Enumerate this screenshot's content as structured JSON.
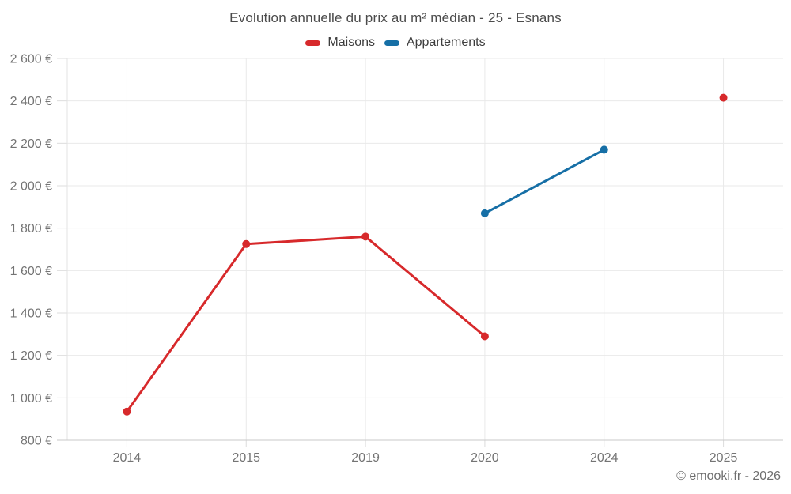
{
  "title": "Evolution annuelle du prix au m² médian - 25 - Esnans",
  "footer": "© emooki.fr - 2026",
  "colors": {
    "maisons": "#d7292b",
    "appartements": "#166fa6",
    "gridline": "#e9e9e9",
    "axis_line": "#c9c9c9",
    "left_axis_line": "#e3e3e3",
    "tick": "#dcdcdc",
    "axis_label": "#747474",
    "title_text": "#4b4b4b"
  },
  "chart_data": {
    "type": "line",
    "title": "Evolution annuelle du prix au m² médian - 25 - Esnans",
    "categories": [
      "2014",
      "2015",
      "2019",
      "2020",
      "2024",
      "2025"
    ],
    "series": [
      {
        "name": "Maisons",
        "color": "#d7292b",
        "values": [
          935,
          1725,
          1760,
          1290,
          null,
          2415
        ]
      },
      {
        "name": "Appartements",
        "color": "#166fa6",
        "values": [
          null,
          null,
          null,
          1870,
          2170,
          null
        ]
      }
    ],
    "xlabel": "",
    "ylabel": "",
    "ylim": [
      800,
      2600
    ],
    "ytick_step": 200,
    "ytick_labels": [
      "800 €",
      "1 000 €",
      "1 200 €",
      "1 400 €",
      "1 600 €",
      "1 800 €",
      "2 000 €",
      "2 200 €",
      "2 400 €",
      "2 600 €"
    ],
    "grid": true,
    "legend_position": "top",
    "marker_radius": 5,
    "line_width": 3
  }
}
